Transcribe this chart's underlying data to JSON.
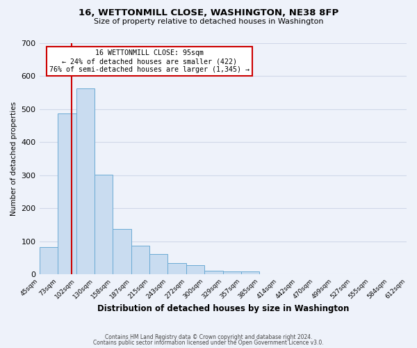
{
  "title": "16, WETTONMILL CLOSE, WASHINGTON, NE38 8FP",
  "subtitle": "Size of property relative to detached houses in Washington",
  "xlabel": "Distribution of detached houses by size in Washington",
  "ylabel": "Number of detached properties",
  "bin_edges": [
    45,
    73,
    102,
    130,
    158,
    187,
    215,
    243,
    272,
    300,
    329,
    357,
    385,
    414,
    442,
    470,
    499,
    527,
    555,
    584,
    612
  ],
  "bin_heights": [
    82,
    487,
    563,
    302,
    138,
    87,
    63,
    35,
    29,
    11,
    10,
    10,
    0,
    0,
    0,
    0,
    0,
    0,
    0,
    0
  ],
  "bar_color": "#c9dcf0",
  "bar_edge_color": "#6aaad4",
  "vline_x": 95,
  "vline_color": "#cc0000",
  "ylim": [
    0,
    700
  ],
  "yticks": [
    0,
    100,
    200,
    300,
    400,
    500,
    600,
    700
  ],
  "annotation_line1": "16 WETTONMILL CLOSE: 95sqm",
  "annotation_line2": "← 24% of detached houses are smaller (422)",
  "annotation_line3": "76% of semi-detached houses are larger (1,345) →",
  "annotation_box_color": "#ffffff",
  "annotation_box_edge": "#cc0000",
  "footer_line1": "Contains HM Land Registry data © Crown copyright and database right 2024.",
  "footer_line2": "Contains public sector information licensed under the Open Government Licence v3.0.",
  "background_color": "#eef2fa",
  "grid_color": "#d0d8e8"
}
